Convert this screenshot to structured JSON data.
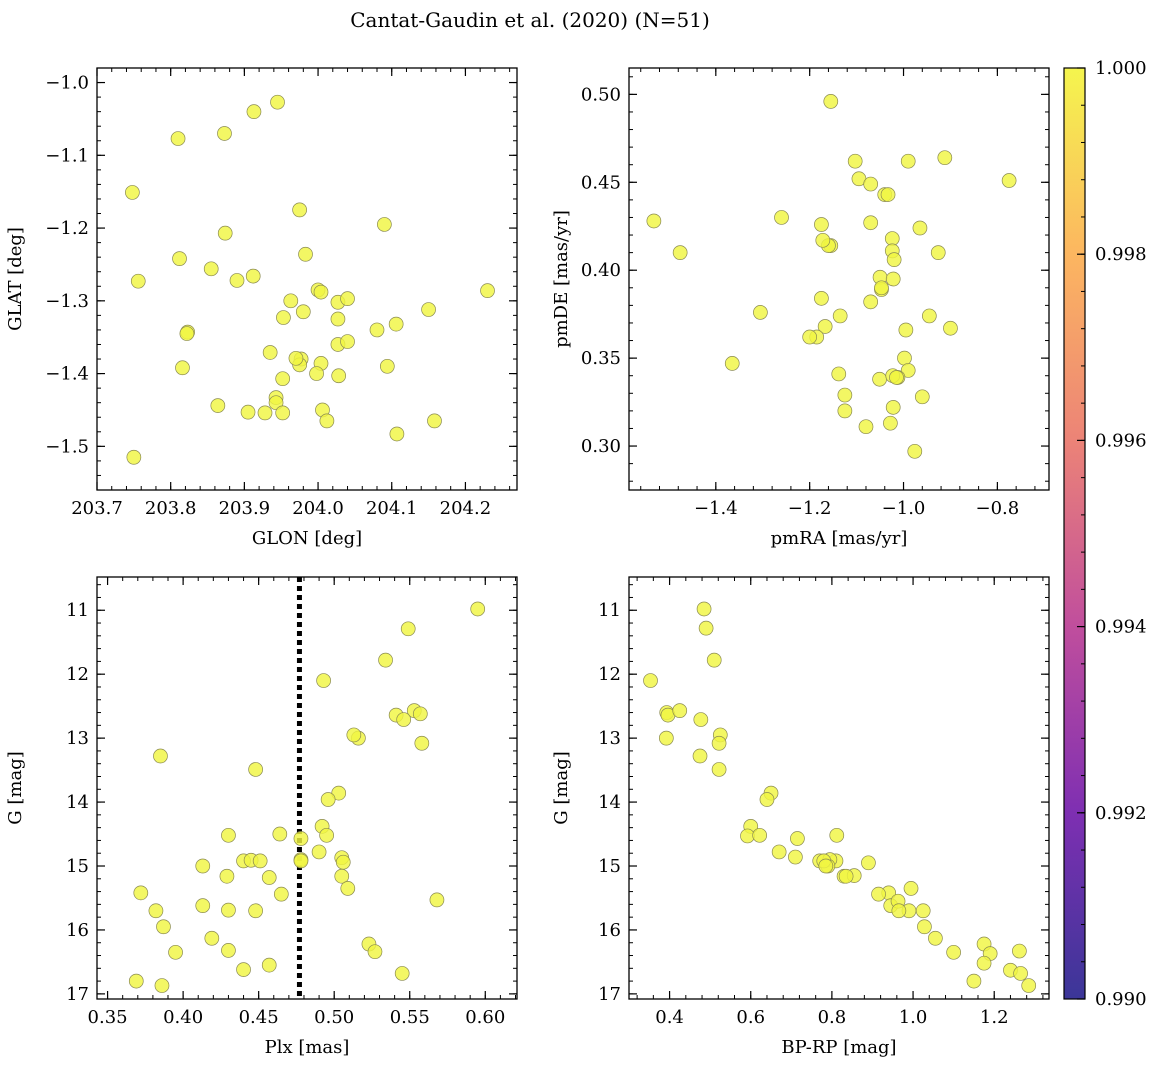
{
  "figure": {
    "title": "Cantat-Gaudin et al. (2020) (N=51)"
  },
  "colorbar": {
    "range": [
      0.99,
      1.0
    ],
    "ticks": [
      "0.990",
      "0.992",
      "0.994",
      "0.996",
      "0.998",
      "1.000"
    ],
    "colormap": "plasma",
    "colors": [
      "#3b3698",
      "#7e2fb2",
      "#c04e9d",
      "#ec8377",
      "#fcb660",
      "#f5f54e"
    ]
  },
  "marker_color": "#f0f542",
  "chart_data": [
    {
      "type": "scatter",
      "title": "",
      "xlabel": "GLON [deg]",
      "ylabel": "GLAT [deg]",
      "xlim": [
        203.7,
        204.27
      ],
      "ylim": [
        -1.56,
        -0.98
      ],
      "xticks": [
        "203.7",
        "203.8",
        "203.9",
        "204.0",
        "204.1",
        "204.2"
      ],
      "yticks": [
        "−1.0",
        "−1.1",
        "−1.2",
        "−1.3",
        "−1.4",
        "−1.5"
      ],
      "x": [
        203.945,
        203.913,
        203.873,
        203.81,
        203.748,
        203.756,
        203.812,
        203.874,
        203.855,
        203.89,
        203.912,
        203.975,
        203.983,
        203.963,
        203.98,
        203.953,
        204.0,
        204.004,
        204.027,
        204.04,
        204.027,
        204.08,
        204.106,
        204.15,
        204.23,
        204.09,
        203.823,
        203.822,
        203.816,
        203.935,
        203.977,
        203.975,
        203.97,
        204.004,
        203.998,
        204.027,
        204.04,
        204.028,
        204.094,
        203.952,
        203.943,
        203.943,
        203.928,
        203.905,
        203.864,
        203.952,
        204.006,
        204.012,
        204.107,
        204.158,
        203.75
      ],
      "y": [
        -1.027,
        -1.04,
        -1.07,
        -1.077,
        -1.151,
        -1.273,
        -1.242,
        -1.207,
        -1.256,
        -1.272,
        -1.266,
        -1.175,
        -1.236,
        -1.3,
        -1.315,
        -1.323,
        -1.285,
        -1.288,
        -1.302,
        -1.297,
        -1.325,
        -1.34,
        -1.332,
        -1.312,
        -1.286,
        -1.195,
        -1.343,
        -1.345,
        -1.392,
        -1.371,
        -1.38,
        -1.388,
        -1.379,
        -1.386,
        -1.4,
        -1.36,
        -1.356,
        -1.403,
        -1.39,
        -1.407,
        -1.433,
        -1.44,
        -1.454,
        -1.453,
        -1.444,
        -1.454,
        -1.45,
        -1.465,
        -1.483,
        -1.465,
        -1.515
      ]
    },
    {
      "type": "scatter",
      "title": "",
      "xlabel": "pmRA [mas/yr]",
      "ylabel": "pmDE [mas/yr]",
      "xlim": [
        -1.585,
        -0.69
      ],
      "ylim": [
        0.275,
        0.515
      ],
      "xticks": [
        "−1.4",
        "−1.2",
        "−1.0",
        "−0.8"
      ],
      "yticks": [
        "0.30",
        "0.35",
        "0.40",
        "0.45",
        "0.50"
      ],
      "x": [
        -1.155,
        -1.103,
        -0.99,
        -0.912,
        -1.095,
        -1.07,
        -1.04,
        -1.033,
        -0.775,
        -1.532,
        -1.476,
        -1.26,
        -1.175,
        -1.155,
        -1.16,
        -1.172,
        -1.07,
        -1.024,
        -0.965,
        -1.024,
        -1.02,
        -0.926,
        -1.05,
        -1.047,
        -1.022,
        -1.047,
        -1.305,
        -1.175,
        -1.07,
        -1.135,
        -1.167,
        -1.185,
        -1.2,
        -0.995,
        -0.9,
        -0.945,
        -1.365,
        -0.998,
        -0.99,
        -1.138,
        -1.051,
        -1.012,
        -1.023,
        -0.96,
        -1.125,
        -1.022,
        -1.125,
        -1.028,
        -1.08,
        -0.976,
        -1.015
      ],
      "y": [
        0.496,
        0.462,
        0.462,
        0.464,
        0.452,
        0.449,
        0.443,
        0.443,
        0.451,
        0.428,
        0.41,
        0.43,
        0.426,
        0.414,
        0.414,
        0.417,
        0.427,
        0.418,
        0.424,
        0.411,
        0.406,
        0.41,
        0.396,
        0.389,
        0.395,
        0.39,
        0.376,
        0.384,
        0.382,
        0.374,
        0.368,
        0.362,
        0.362,
        0.366,
        0.367,
        0.374,
        0.347,
        0.35,
        0.343,
        0.341,
        0.338,
        0.339,
        0.34,
        0.328,
        0.329,
        0.322,
        0.32,
        0.313,
        0.311,
        0.297,
        0.339
      ]
    },
    {
      "type": "scatter",
      "title": "",
      "xlabel": "Plx [mas]",
      "ylabel": "G [mag]",
      "xlim": [
        0.343,
        0.621
      ],
      "ylim": [
        17.08,
        10.48
      ],
      "inverted_y": true,
      "xticks": [
        "0.35",
        "0.40",
        "0.45",
        "0.50",
        "0.55",
        "0.60"
      ],
      "yticks": [
        "11",
        "12",
        "13",
        "14",
        "15",
        "16",
        "17"
      ],
      "vline": {
        "x": 0.477,
        "style": "dotted"
      },
      "x": [
        0.595,
        0.549,
        0.534,
        0.493,
        0.541,
        0.553,
        0.557,
        0.546,
        0.516,
        0.513,
        0.558,
        0.385,
        0.448,
        0.503,
        0.496,
        0.492,
        0.495,
        0.478,
        0.43,
        0.464,
        0.413,
        0.44,
        0.445,
        0.451,
        0.478,
        0.478,
        0.49,
        0.505,
        0.506,
        0.429,
        0.457,
        0.505,
        0.509,
        0.465,
        0.568,
        0.372,
        0.413,
        0.43,
        0.382,
        0.448,
        0.387,
        0.419,
        0.395,
        0.43,
        0.523,
        0.527,
        0.44,
        0.457,
        0.545,
        0.369,
        0.386
      ],
      "y": [
        10.98,
        11.29,
        11.78,
        12.1,
        12.64,
        12.57,
        12.62,
        12.71,
        13.0,
        12.95,
        13.08,
        13.28,
        13.49,
        13.86,
        13.96,
        14.38,
        14.52,
        14.57,
        14.52,
        14.5,
        15.0,
        14.92,
        14.91,
        14.92,
        14.9,
        14.92,
        14.78,
        14.87,
        14.94,
        15.16,
        15.18,
        15.16,
        15.35,
        15.44,
        15.53,
        15.42,
        15.62,
        15.69,
        15.7,
        15.7,
        15.95,
        16.13,
        16.35,
        16.32,
        16.22,
        16.34,
        16.62,
        16.55,
        16.68,
        16.8,
        16.87
      ]
    },
    {
      "type": "scatter",
      "title": "",
      "xlabel": "BP-RP [mag]",
      "ylabel": "G [mag]",
      "xlim": [
        0.3,
        1.335
      ],
      "ylim": [
        17.08,
        10.48
      ],
      "inverted_y": true,
      "xticks": [
        "0.4",
        "0.6",
        "0.8",
        "1.0",
        "1.2"
      ],
      "yticks": [
        "11",
        "12",
        "13",
        "14",
        "15",
        "16",
        "17"
      ],
      "x": [
        0.485,
        0.49,
        0.51,
        0.353,
        0.393,
        0.396,
        0.425,
        0.477,
        0.525,
        0.522,
        0.392,
        0.475,
        0.522,
        0.65,
        0.64,
        0.6,
        0.592,
        0.622,
        0.715,
        0.67,
        0.812,
        0.77,
        0.81,
        0.795,
        0.79,
        0.89,
        0.71,
        0.78,
        0.785,
        0.83,
        0.855,
        0.835,
        0.995,
        0.94,
        0.915,
        0.945,
        0.963,
        0.99,
        1.025,
        0.965,
        1.028,
        1.055,
        1.1,
        1.175,
        1.262,
        1.19,
        1.175,
        1.24,
        1.265,
        1.15,
        1.285
      ],
      "y": [
        10.98,
        11.28,
        11.78,
        12.1,
        12.6,
        12.64,
        12.57,
        12.71,
        12.95,
        13.08,
        13.0,
        13.28,
        13.49,
        13.86,
        13.96,
        14.38,
        14.53,
        14.52,
        14.57,
        14.78,
        14.52,
        14.92,
        14.92,
        14.9,
        15.0,
        14.95,
        14.86,
        14.92,
        15.0,
        15.16,
        15.15,
        15.16,
        15.35,
        15.42,
        15.44,
        15.62,
        15.55,
        15.7,
        15.7,
        15.7,
        15.95,
        16.13,
        16.35,
        16.22,
        16.33,
        16.37,
        16.52,
        16.63,
        16.68,
        16.8,
        16.87
      ]
    }
  ]
}
